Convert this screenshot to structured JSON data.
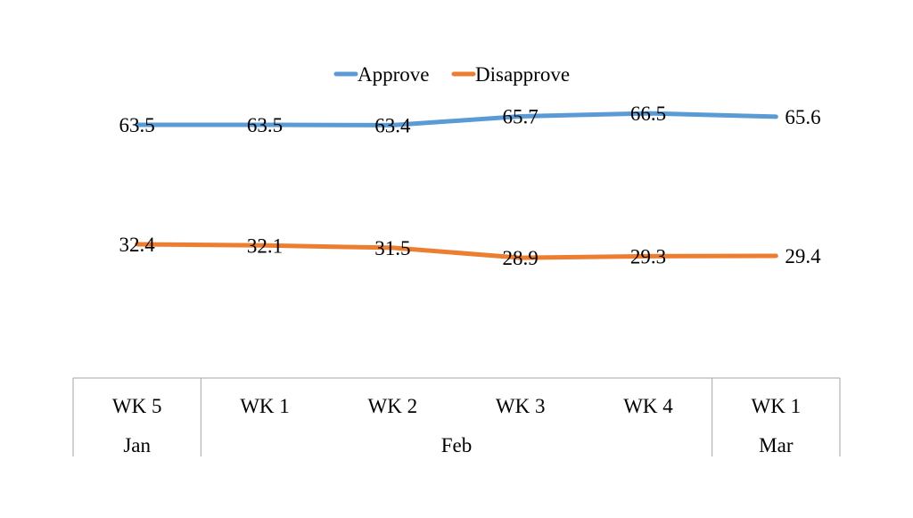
{
  "chart_data": {
    "type": "line",
    "categories": [
      {
        "week": "WK 5",
        "month": "Jan"
      },
      {
        "week": "WK 1",
        "month": "Feb"
      },
      {
        "week": "WK 2",
        "month": "Feb"
      },
      {
        "week": "WK 3",
        "month": "Feb"
      },
      {
        "week": "WK 4",
        "month": "Feb"
      },
      {
        "week": "WK 1",
        "month": "Mar"
      }
    ],
    "month_groups": [
      {
        "label": "Jan",
        "span": 1
      },
      {
        "label": "Feb",
        "span": 4
      },
      {
        "label": "Mar",
        "span": 1
      }
    ],
    "series": [
      {
        "name": "Approve",
        "color": "#5b9bd5",
        "values": [
          63.5,
          63.5,
          63.4,
          65.7,
          66.5,
          65.6
        ]
      },
      {
        "name": "Disapprove",
        "color": "#ed7d31",
        "values": [
          32.4,
          32.1,
          31.5,
          28.9,
          29.3,
          29.4
        ]
      }
    ],
    "data_labels": true,
    "legend": "top-center",
    "grid": false,
    "title": "",
    "xlabel": "",
    "ylabel": ""
  }
}
